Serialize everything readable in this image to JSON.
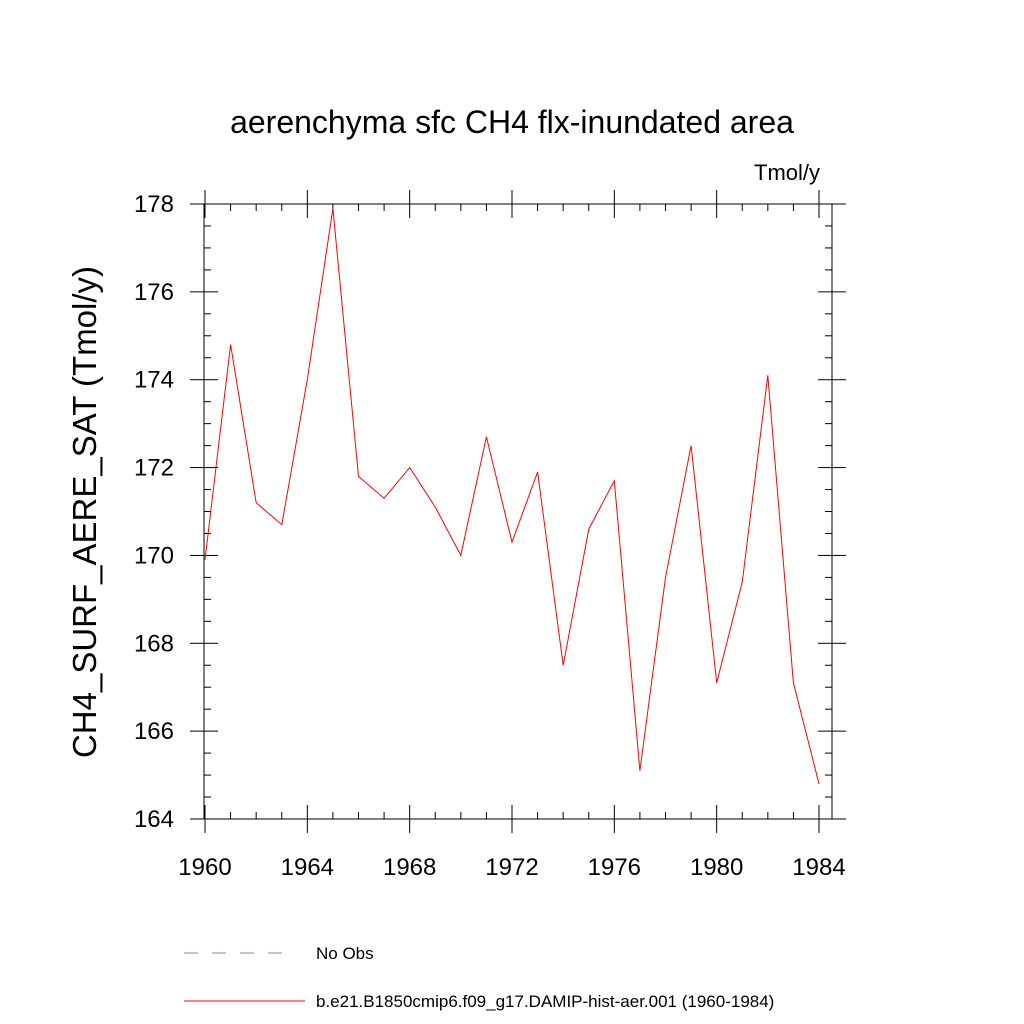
{
  "chart_data": {
    "type": "line",
    "title": "aerenchyma sfc CH4 flx-inundated area",
    "units_label": "Tmol/y",
    "ylabel": "CH4_SURF_AERE_SAT  (Tmol/y)",
    "xlabel": "",
    "xlim": [
      1960,
      1984
    ],
    "ylim": [
      164,
      178
    ],
    "x_ticks": [
      "1960",
      "1964",
      "1968",
      "1972",
      "1976",
      "1980",
      "1984"
    ],
    "y_ticks": [
      "164",
      "166",
      "168",
      "170",
      "172",
      "174",
      "176",
      "178"
    ],
    "grid": false,
    "legend_position": "bottom",
    "series": [
      {
        "name": "b.e21.B1850cmip6.f09_g17.DAMIP-hist-aer.001 (1960-1984)",
        "color": "#ff0000",
        "style": "solid",
        "x": [
          1960,
          1961,
          1962,
          1963,
          1964,
          1965,
          1966,
          1967,
          1968,
          1969,
          1970,
          1971,
          1972,
          1973,
          1974,
          1975,
          1976,
          1977,
          1978,
          1979,
          1980,
          1981,
          1982,
          1983,
          1984
        ],
        "y": [
          169.9,
          174.8,
          171.2,
          170.7,
          174.0,
          177.9,
          171.8,
          171.3,
          172.0,
          171.1,
          170.0,
          172.7,
          170.3,
          171.9,
          167.5,
          170.6,
          171.7,
          165.1,
          169.5,
          172.5,
          167.1,
          169.4,
          174.1,
          167.1,
          164.8
        ]
      },
      {
        "name": "No Obs",
        "color": "#8080c0",
        "style": "dashed",
        "x": [],
        "y": []
      }
    ]
  }
}
